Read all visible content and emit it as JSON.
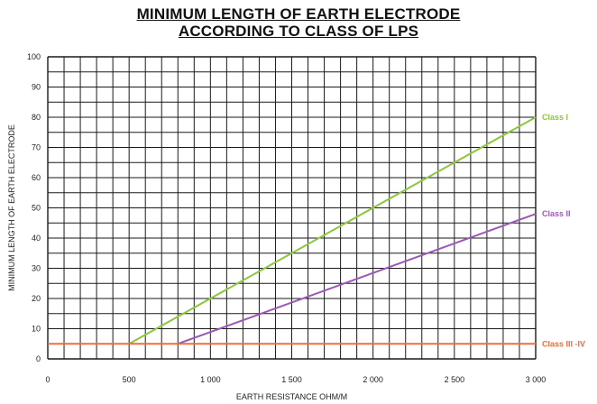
{
  "chart_data": {
    "type": "line",
    "title": [
      "MINIMUM LENGTH OF EARTH ELECTRODE",
      "ACCORDING TO CLASS OF LPS"
    ],
    "xlabel": "EARTH RESISTANCE OHM/M",
    "ylabel": "MINIMUM LENGTH OF EARTH ELECTRODE",
    "xlim": [
      0,
      3000
    ],
    "ylim": [
      0,
      100
    ],
    "grid": true,
    "x_ticks": [
      {
        "value": 0,
        "label": "0"
      },
      {
        "value": 500,
        "label": "500"
      },
      {
        "value": 1000,
        "label": "1 000"
      },
      {
        "value": 1500,
        "label": "1 500"
      },
      {
        "value": 2000,
        "label": "2 000"
      },
      {
        "value": 2500,
        "label": "2 500"
      },
      {
        "value": 3000,
        "label": "3 000"
      }
    ],
    "y_ticks": [
      {
        "value": 0,
        "label": "0"
      },
      {
        "value": 10,
        "label": "10"
      },
      {
        "value": 20,
        "label": "20"
      },
      {
        "value": 30,
        "label": "30"
      },
      {
        "value": 40,
        "label": "40"
      },
      {
        "value": 50,
        "label": "50"
      },
      {
        "value": 60,
        "label": "60"
      },
      {
        "value": 70,
        "label": "70"
      },
      {
        "value": 80,
        "label": "80"
      },
      {
        "value": 90,
        "label": "90"
      },
      {
        "value": 100,
        "label": "100"
      }
    ],
    "series": [
      {
        "name": "Class I",
        "color": "#8dc63f",
        "x": [
          500,
          3000
        ],
        "y": [
          5,
          80
        ]
      },
      {
        "name": "Class II",
        "color": "#9b59b6",
        "x": [
          800,
          3000
        ],
        "y": [
          5,
          48
        ]
      },
      {
        "name": "Class III -IV",
        "color": "#f26b3a",
        "x": [
          0,
          3000
        ],
        "y": [
          5,
          5
        ]
      }
    ]
  }
}
